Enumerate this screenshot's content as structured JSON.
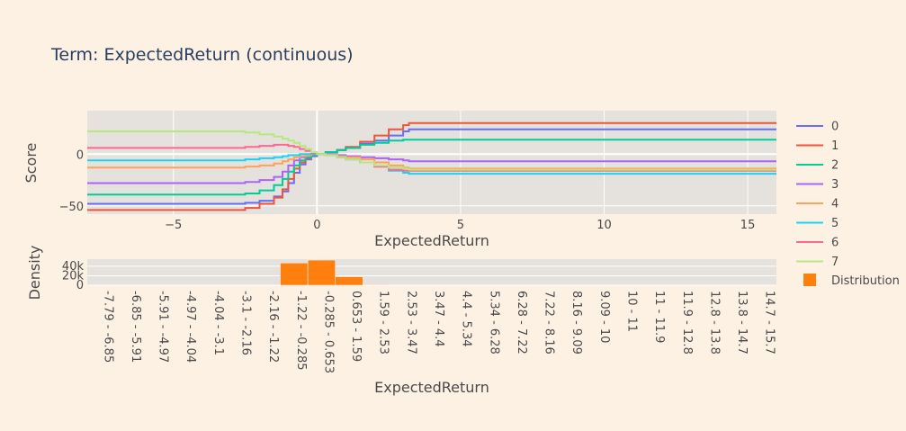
{
  "chart_data": [
    {
      "type": "line",
      "title": "Term: ExpectedReturn (continuous)",
      "xlabel": "ExpectedReturn",
      "ylabel": "Score",
      "xlim": [
        -8,
        16
      ],
      "ylim": [
        -58,
        42
      ],
      "xticks": [
        -5,
        0,
        5,
        10,
        15
      ],
      "yticks": [
        -50,
        0
      ],
      "grid": true,
      "legend_position": "right",
      "series": [
        {
          "name": "0",
          "color": "#636efa",
          "x": [
            -8,
            -4,
            -2.5,
            -2,
            -1.5,
            -1.2,
            -1,
            -0.8,
            -0.6,
            -0.4,
            -0.2,
            0,
            0.3,
            0.7,
            1,
            1.5,
            2,
            2.5,
            3,
            3.2,
            5,
            10,
            16
          ],
          "y": [
            -48,
            -48,
            -47,
            -45,
            -41,
            -36,
            -28,
            -18,
            -10,
            -5,
            -2,
            0,
            2,
            4,
            6,
            10,
            13,
            18,
            22,
            24,
            24,
            24,
            24
          ]
        },
        {
          "name": "1",
          "color": "#ef553b",
          "x": [
            -8,
            -4,
            -2.5,
            -2,
            -1.5,
            -1.2,
            -1,
            -0.8,
            -0.6,
            -0.4,
            -0.2,
            0,
            0.3,
            0.7,
            1,
            1.5,
            2,
            2.5,
            3,
            3.2,
            5,
            10,
            16
          ],
          "y": [
            -54,
            -54,
            -52,
            -48,
            -42,
            -34,
            -24,
            -14,
            -8,
            -4,
            -1,
            0,
            2,
            4,
            7,
            12,
            18,
            24,
            28,
            30,
            30,
            30,
            30
          ]
        },
        {
          "name": "2",
          "color": "#00cc96",
          "x": [
            -8,
            -4,
            -2.5,
            -2,
            -1.5,
            -1.2,
            -1,
            -0.8,
            -0.6,
            -0.4,
            -0.2,
            0,
            0.3,
            0.7,
            1,
            1.5,
            2,
            2.5,
            3,
            3.2,
            5,
            10,
            16
          ],
          "y": [
            -39,
            -39,
            -38,
            -35,
            -30,
            -24,
            -17,
            -11,
            -6,
            -3,
            -1,
            0,
            2,
            4,
            6,
            9,
            11,
            13,
            14,
            14,
            14,
            14,
            14
          ]
        },
        {
          "name": "3",
          "color": "#ab63fa",
          "x": [
            -8,
            -4,
            -2.5,
            -2,
            -1.5,
            -1.2,
            -1,
            -0.8,
            -0.6,
            -0.4,
            -0.2,
            0,
            0.3,
            0.7,
            1,
            1.5,
            2,
            2.5,
            3,
            3.2,
            5,
            10,
            16
          ],
          "y": [
            -28,
            -28,
            -27,
            -25,
            -22,
            -17,
            -11,
            -6,
            -3,
            -1,
            0,
            0,
            0,
            -1,
            -2,
            -3,
            -4,
            -5,
            -6,
            -7,
            -7,
            -7,
            -7
          ]
        },
        {
          "name": "4",
          "color": "#ffa15a",
          "x": [
            -8,
            -4,
            -2.5,
            -2,
            -1.5,
            -1.2,
            -1,
            -0.8,
            -0.6,
            -0.4,
            -0.2,
            0,
            0.3,
            0.7,
            1,
            1.5,
            2,
            2.5,
            3,
            3.2,
            5,
            10,
            16
          ],
          "y": [
            -13,
            -13,
            -12,
            -11,
            -9,
            -7,
            -5,
            -3,
            -2,
            -1,
            0,
            0,
            -1,
            -2,
            -3,
            -5,
            -8,
            -11,
            -13,
            -14,
            -14,
            -14,
            -14
          ]
        },
        {
          "name": "5",
          "color": "#19d3f3",
          "x": [
            -8,
            -4,
            -2.5,
            -2,
            -1.5,
            -1.2,
            -1,
            -0.8,
            -0.6,
            -0.4,
            -0.2,
            0,
            0.3,
            0.7,
            1,
            1.5,
            2,
            2.5,
            3,
            3.2,
            5,
            10,
            16
          ],
          "y": [
            -6,
            -6,
            -5,
            -4,
            -3,
            -2,
            -1,
            -1,
            0,
            0,
            0,
            0,
            -1,
            -3,
            -5,
            -8,
            -12,
            -16,
            -18,
            -19,
            -19,
            -19,
            -19
          ]
        },
        {
          "name": "6",
          "color": "#ff6692",
          "x": [
            -8,
            -4,
            -2.5,
            -2,
            -1.5,
            -1.2,
            -1,
            -0.8,
            -0.6,
            -0.4,
            -0.2,
            0,
            0.3,
            0.7,
            1,
            1.5,
            2,
            2.5,
            3,
            3.2,
            5,
            10,
            16
          ],
          "y": [
            6,
            6,
            7,
            8,
            9,
            9,
            8,
            7,
            5,
            3,
            1,
            0,
            -1,
            -3,
            -5,
            -8,
            -12,
            -15,
            -16,
            -16,
            -16,
            -16,
            -16
          ]
        },
        {
          "name": "7",
          "color": "#b6e880",
          "x": [
            -8,
            -4,
            -2.5,
            -2,
            -1.5,
            -1.2,
            -1,
            -0.8,
            -0.6,
            -0.4,
            -0.2,
            0,
            0.3,
            0.7,
            1,
            1.5,
            2,
            2.5,
            3,
            3.2,
            5,
            10,
            16
          ],
          "y": [
            22,
            22,
            21,
            19,
            17,
            15,
            13,
            11,
            8,
            5,
            2,
            0,
            -1,
            -3,
            -5,
            -8,
            -11,
            -13,
            -14,
            -15,
            -15,
            -15,
            -15
          ]
        }
      ]
    },
    {
      "type": "bar",
      "xlabel": "ExpectedReturn",
      "ylabel": "Density",
      "ylim": [
        0,
        55000
      ],
      "yticks": [
        0,
        20000,
        40000
      ],
      "ytick_labels": [
        "0",
        "20k",
        "40k"
      ],
      "legend": {
        "name": "Distribution",
        "color": "#ff7f0e"
      },
      "categories": [
        "-7.79 - -6.85",
        "-6.85 - -5.91",
        "-5.91 - -4.97",
        "-4.97 - -4.04",
        "-4.04 - -3.1",
        "-3.1 - -2.16",
        "-2.16 - -1.22",
        "-1.22 - -0.285",
        "-0.285 - 0.653",
        "0.653 - 1.59",
        "1.59 - 2.53",
        "2.53 - 3.47",
        "3.47 - 4.4",
        "4.4 - 5.34",
        "5.34 - 6.28",
        "6.28 - 7.22",
        "7.22 - 8.16",
        "8.16 - 9.09",
        "9.09 - 10",
        "10 - 11",
        "11 - 11.9",
        "11.9 - 12.8",
        "12.8 - 13.8",
        "13.8 - 14.7",
        "14.7 - 15.7"
      ],
      "values": [
        0,
        0,
        0,
        0,
        0,
        0,
        0,
        47000,
        53000,
        18000,
        1200,
        500,
        0,
        0,
        0,
        0,
        0,
        0,
        0,
        0,
        0,
        0,
        0,
        0,
        0
      ]
    }
  ]
}
